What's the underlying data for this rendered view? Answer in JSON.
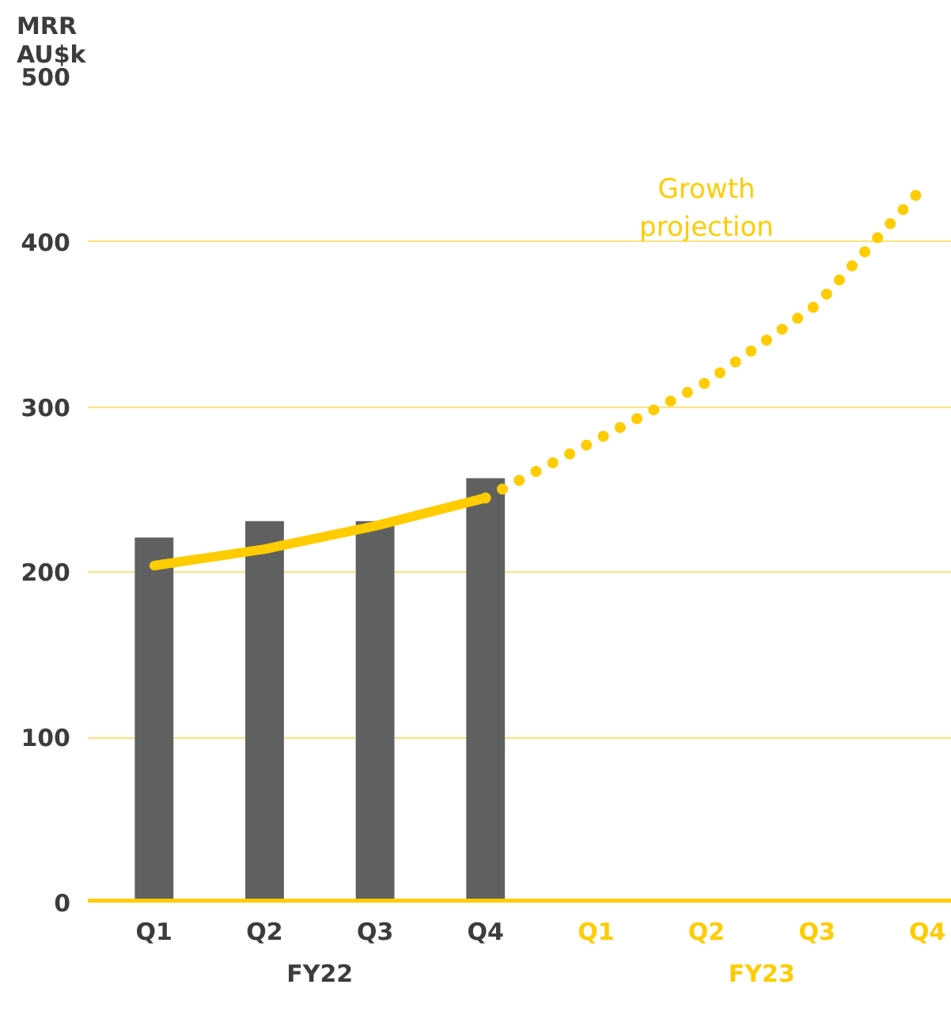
{
  "chart_data": {
    "type": "bar",
    "ylabel": "MRR\nAU$k",
    "categories": [
      "Q1",
      "Q2",
      "Q3",
      "Q4",
      "Q1",
      "Q2",
      "Q3",
      "Q4"
    ],
    "series": [
      {
        "color": "#5f6160",
        "values": [
          221,
          231,
          231,
          257,
          null,
          null,
          null,
          null
        ]
      },
      {
        "type": "line",
        "color": "#ffcc00",
        "line_style": "solid",
        "values": [
          204,
          214,
          228,
          245,
          null,
          null,
          null,
          null
        ]
      },
      {
        "type": "line",
        "name": "Growth projection",
        "color": "#ffcc00",
        "line_style": "dotted",
        "values": [
          null,
          null,
          null,
          245,
          280,
          315,
          362,
          436
        ]
      }
    ],
    "annotations": [
      "FY22",
      "FY23"
    ],
    "ylim": [
      0,
      500
    ],
    "yticks": [
      0,
      100,
      200,
      300,
      400,
      500
    ],
    "grid": "y",
    "legend": false
  }
}
